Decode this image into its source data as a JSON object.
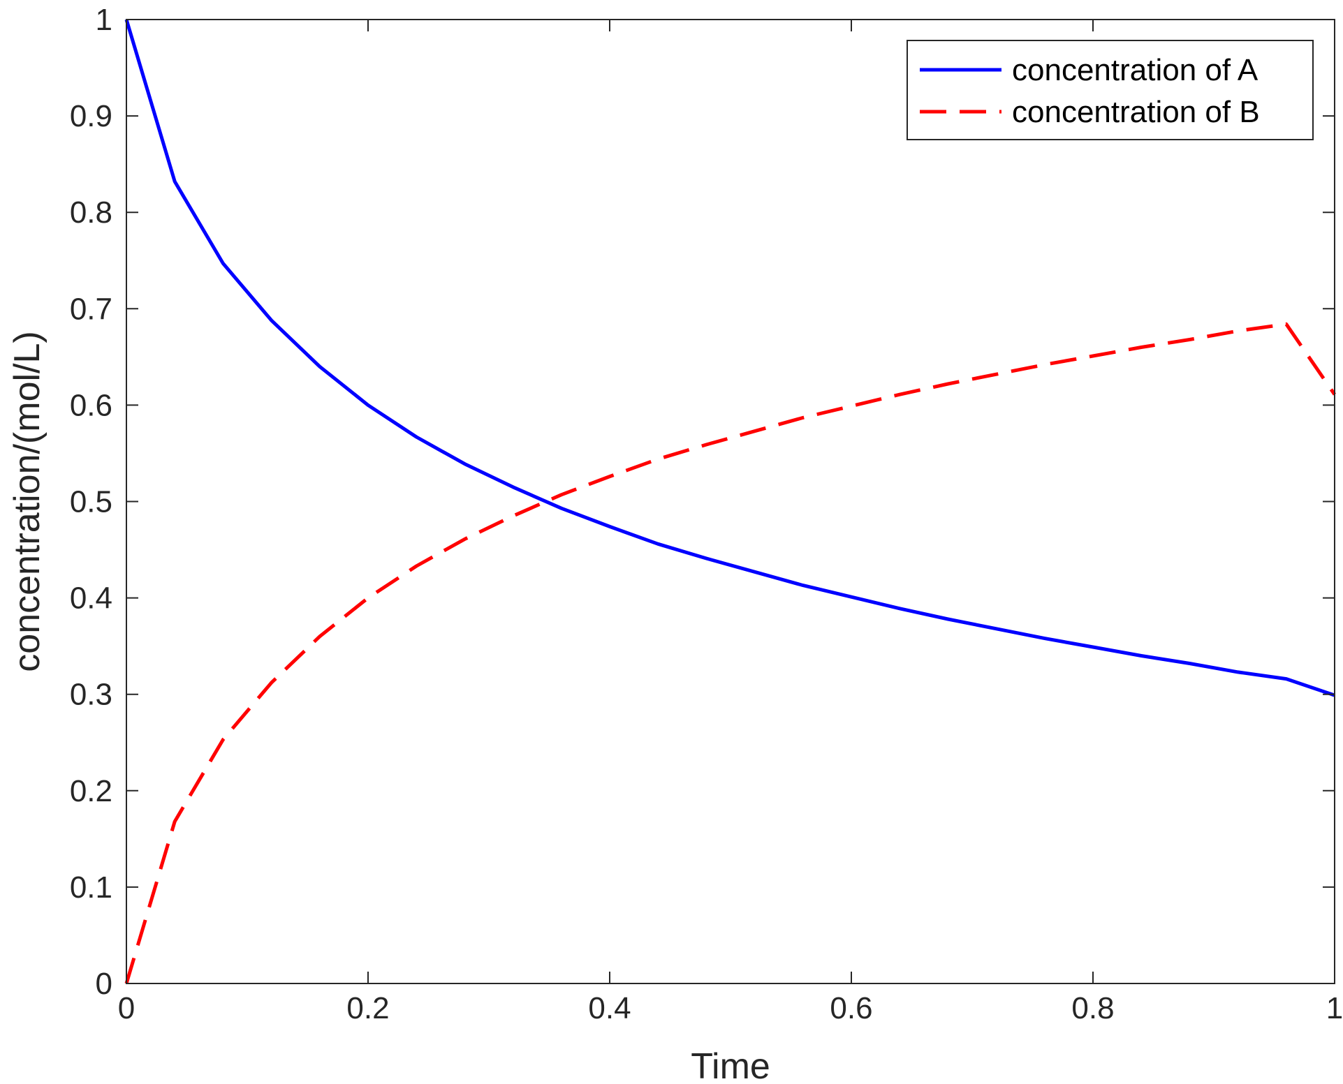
{
  "chart_data": {
    "type": "line",
    "title": "",
    "xlabel": "Time",
    "ylabel": "concentration/(mol/L)",
    "xlim": [
      0,
      1
    ],
    "ylim": [
      0,
      1
    ],
    "x_ticks": [
      "0",
      "0.2",
      "0.4",
      "0.6",
      "0.8",
      "1"
    ],
    "y_ticks": [
      "0",
      "0.1",
      "0.2",
      "0.3",
      "0.4",
      "0.5",
      "0.6",
      "0.7",
      "0.8",
      "0.9",
      "1"
    ],
    "grid": false,
    "legend_position": "top-right",
    "x": [
      0,
      0.04,
      0.08,
      0.12,
      0.16,
      0.2,
      0.24,
      0.28,
      0.32,
      0.36,
      0.4,
      0.44,
      0.48,
      0.52,
      0.56,
      0.6,
      0.64,
      0.68,
      0.72,
      0.76,
      0.8,
      0.84,
      0.88,
      0.92,
      0.96,
      1.0
    ],
    "series": [
      {
        "name": "concentration of A",
        "color": "#0000ff",
        "style": "solid",
        "values": [
          1.0,
          0.832,
          0.747,
          0.688,
          0.64,
          0.6,
          0.567,
          0.539,
          0.515,
          0.493,
          0.474,
          0.456,
          0.441,
          0.427,
          0.413,
          0.401,
          0.389,
          0.378,
          0.368,
          0.358,
          0.349,
          0.34,
          0.332,
          0.323,
          0.316,
          0.299
        ]
      },
      {
        "name": "concentration of B",
        "color": "#ff0000",
        "style": "dashed",
        "values": [
          0.0,
          0.168,
          0.253,
          0.312,
          0.36,
          0.4,
          0.433,
          0.461,
          0.485,
          0.507,
          0.526,
          0.544,
          0.559,
          0.573,
          0.587,
          0.599,
          0.611,
          0.622,
          0.632,
          0.642,
          0.651,
          0.66,
          0.668,
          0.677,
          0.684,
          0.611
        ]
      }
    ]
  }
}
